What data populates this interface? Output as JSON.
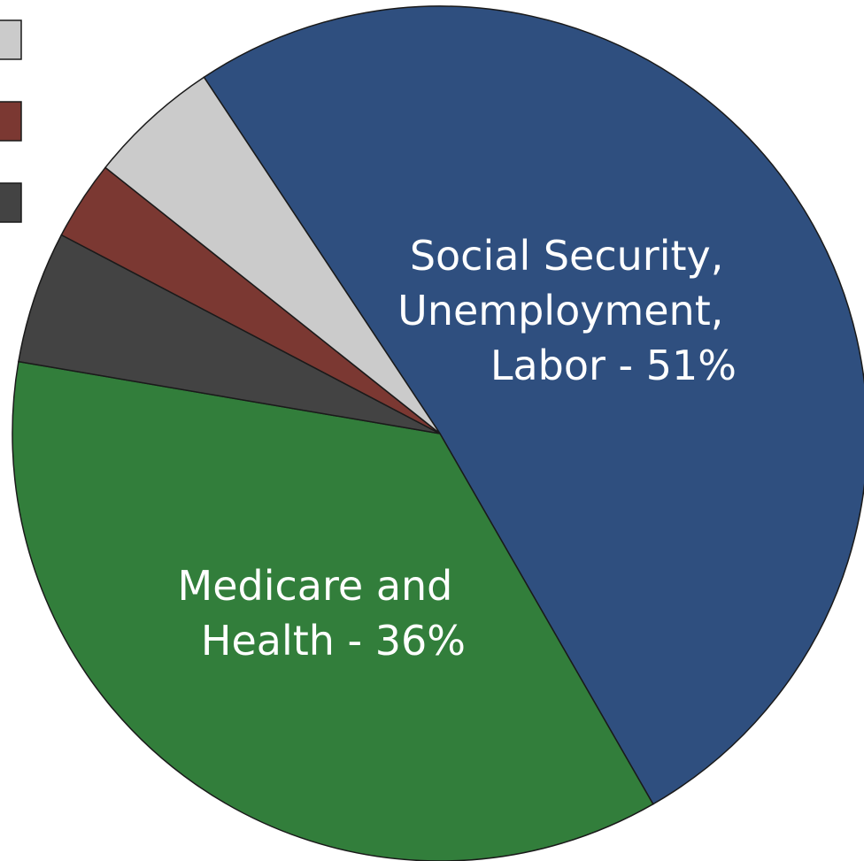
{
  "chart_data": {
    "type": "pie",
    "slices": [
      {
        "label": "Social Security, Unemployment, Labor - 51%",
        "value": 51,
        "color": "#2f4f7f"
      },
      {
        "label": "Medicare and Health - 36%",
        "value": 36,
        "color": "#327e3b"
      },
      {
        "label": "",
        "value": 5,
        "color": "#434343"
      },
      {
        "label": "",
        "value": 3,
        "color": "#7b3832"
      },
      {
        "label": "",
        "value": 5,
        "color": "#cbcbcb"
      }
    ],
    "slice_labels": {
      "social_security": [
        "Social Security,",
        "Unemployment,",
        "Labor - 51%"
      ],
      "medicare": [
        "Medicare and",
        "Health - 36%"
      ]
    },
    "legend": {
      "position": "top-left",
      "swatch_colors": [
        "#cbcbcb",
        "#7b3832",
        "#434343"
      ]
    }
  }
}
